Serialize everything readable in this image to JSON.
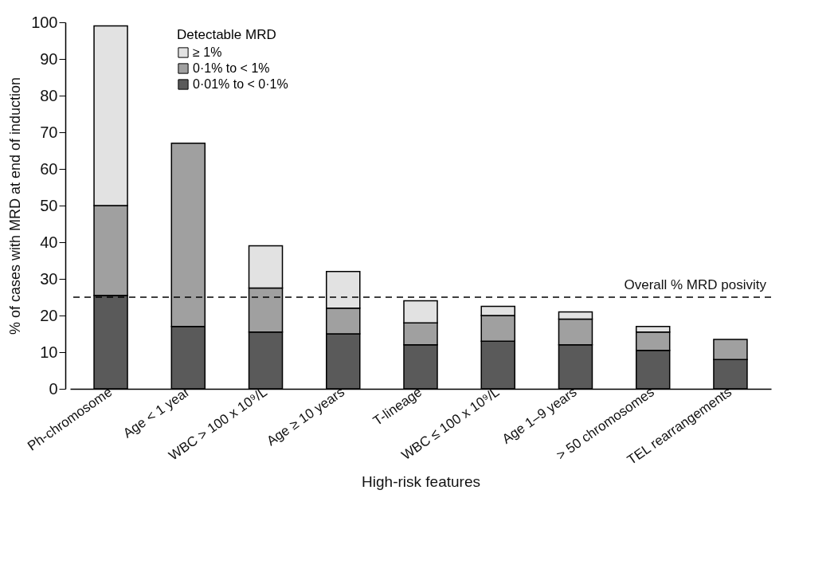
{
  "chart_data": {
    "type": "bar",
    "stacked": true,
    "xlabel": "High-risk features",
    "ylabel": "% of cases with MRD at end of induction",
    "legend_title": "Detectable MRD",
    "categories": [
      "Ph-chromosome",
      "Age < 1 year",
      "WBC > 100 x 10⁹/L",
      "Age ≥ 10 years",
      "T-lineage",
      "WBC ≤ 100 x 10⁹/L",
      "Age 1–9 years",
      "> 50 chromosomes",
      "TEL rearrangements"
    ],
    "series": [
      {
        "name": "0·01% to < 0·1%",
        "color": "#5a5a5a",
        "values": [
          25.5,
          17,
          15.5,
          15,
          12,
          13,
          12,
          10.5,
          8
        ]
      },
      {
        "name": "0·1% to < 1%",
        "color": "#a0a0a0",
        "values": [
          24.5,
          50,
          12,
          7,
          6,
          7,
          7,
          5,
          5.5
        ]
      },
      {
        "name": "≥ 1%",
        "color": "#e2e2e2",
        "values": [
          49,
          null,
          11.5,
          10,
          6,
          2.5,
          2,
          1.5,
          null
        ]
      }
    ],
    "ylim": [
      0,
      100
    ],
    "yticks": [
      0,
      10,
      20,
      30,
      40,
      50,
      60,
      70,
      80,
      90,
      100
    ],
    "grid": false,
    "legend": "top left",
    "ref_lines": [
      {
        "axis": "y",
        "value": 25,
        "label": "Overall % MRD posivity",
        "line_style": "dashed"
      }
    ]
  }
}
